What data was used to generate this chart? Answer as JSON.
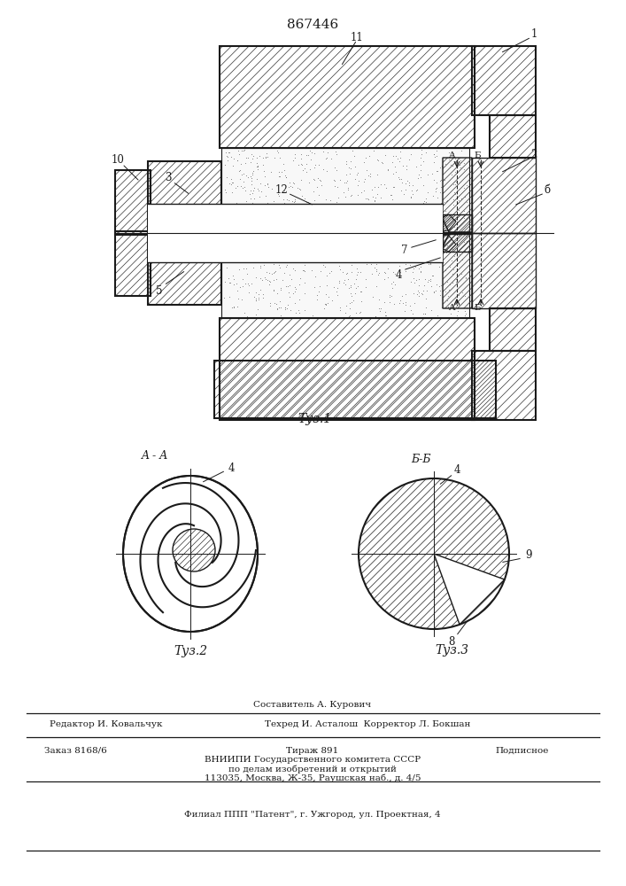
{
  "patent_number": "867446",
  "background": "#ffffff",
  "line_color": "#1a1a1a",
  "hatch_color": "#333333",
  "text_color": "#1a1a1a",
  "footer_line0_center": "Составитель А. Курович",
  "footer_line1_left": "Редактор И. Ковальчук",
  "footer_line1_center": "Техред И. Асталош  Корректор Л. Бокшан",
  "footer_order": "Заказ 8168/6",
  "footer_tirazh": "Тираж 891",
  "footer_podpisnoe": "Подписное",
  "footer_vniip": "ВНИИПИ Государственного комитета СССР",
  "footer_po_delam": "по делам изобретений и открытий",
  "footer_address": "113035, Москва, Ж-35, Раушская наб., д. 4/5",
  "footer_filial": "Филиал ППП \"Патент\", г. Ужгород, ул. Проектная, 4"
}
